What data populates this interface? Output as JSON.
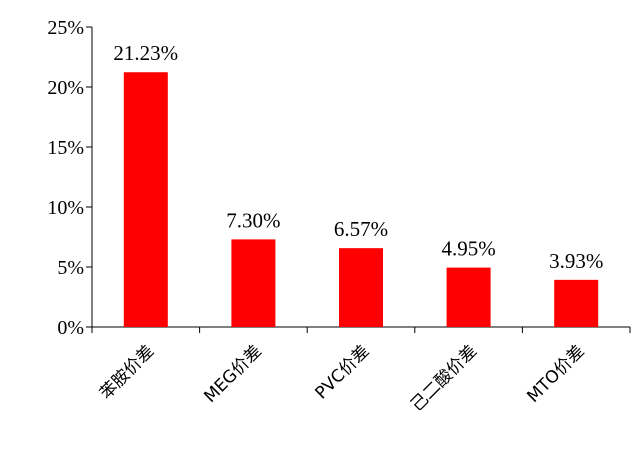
{
  "chart_data": {
    "type": "bar",
    "categories": [
      "苯胺价差",
      "MEG价差",
      "PVC价差",
      "己二酸价差",
      "MTO价差"
    ],
    "values": [
      21.23,
      7.3,
      6.57,
      4.95,
      3.93
    ],
    "data_labels": [
      "21.23%",
      "7.30%",
      "6.57%",
      "4.95%",
      "3.93%"
    ],
    "y_ticks": [
      0,
      5,
      10,
      15,
      20,
      25
    ],
    "y_tick_labels": [
      "0%",
      "5%",
      "10%",
      "15%",
      "20%",
      "25%"
    ],
    "ylim": [
      0,
      25
    ],
    "grid": false,
    "legend": "none",
    "title": "",
    "xlabel": "",
    "ylabel": "",
    "bar_color": "#ff0000"
  }
}
